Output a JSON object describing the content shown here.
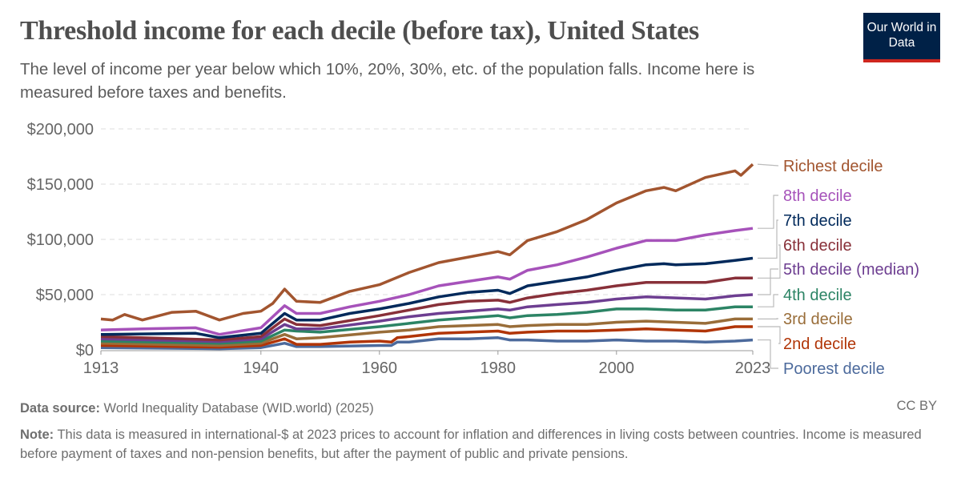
{
  "title": "Threshold income for each decile (before tax), United States",
  "subtitle": "The level of income per year below which 10%, 20%, 30%, etc. of the population falls. Income here is measured before taxes and benefits.",
  "logo": "Our World in Data",
  "footer": {
    "source_label": "Data source:",
    "source": "World Inequality Database (WID.world) (2025)",
    "license": "CC BY",
    "note_label": "Note:",
    "note": "This data is measured in international-$ at 2023 prices to account for inflation and differences in living costs between countries. Income is measured before payment of taxes and non-pension benefits, but after the payment of public and private pensions."
  },
  "chart_data": {
    "type": "line",
    "title": "Threshold income for each decile (before tax), United States",
    "xlim": [
      1913,
      2023
    ],
    "ylim": [
      0,
      200000
    ],
    "x_ticks": [
      "1913",
      "1940",
      "1960",
      "1980",
      "2000",
      "2023"
    ],
    "y_ticks": [
      "$0",
      "$50,000",
      "$100,000",
      "$150,000",
      "$200,000"
    ],
    "grid": "horizontal dashed",
    "legend": "right, labels at line ends",
    "series": [
      {
        "name": "Richest decile",
        "color": "#a2552f",
        "x": [
          1913,
          1915,
          1917,
          1920,
          1925,
          1929,
          1933,
          1937,
          1940,
          1942,
          1944,
          1946,
          1950,
          1955,
          1960,
          1965,
          1970,
          1975,
          1980,
          1982,
          1985,
          1990,
          1995,
          2000,
          2005,
          2008,
          2010,
          2015,
          2020,
          2021,
          2023
        ],
        "y": [
          28000,
          27000,
          32000,
          27000,
          34000,
          35000,
          27000,
          33000,
          35000,
          42000,
          55000,
          44000,
          43000,
          53000,
          59000,
          70000,
          79000,
          84000,
          89000,
          86000,
          99000,
          107000,
          118000,
          133000,
          144000,
          147000,
          144000,
          156000,
          162000,
          158000,
          168000
        ]
      },
      {
        "name": "8th decile",
        "color": "#a652ba",
        "x": [
          1913,
          1920,
          1929,
          1933,
          1940,
          1944,
          1946,
          1950,
          1955,
          1960,
          1965,
          1970,
          1975,
          1980,
          1982,
          1985,
          1990,
          1995,
          2000,
          2005,
          2010,
          2015,
          2020,
          2023
        ],
        "y": [
          18000,
          19000,
          20000,
          14000,
          20000,
          40000,
          33000,
          33000,
          39000,
          44000,
          50000,
          58000,
          62000,
          66000,
          64000,
          72000,
          77000,
          84000,
          92000,
          99000,
          99000,
          104000,
          108000,
          110000
        ]
      },
      {
        "name": "7th decile",
        "color": "#00295b",
        "x": [
          1913,
          1929,
          1933,
          1940,
          1944,
          1946,
          1950,
          1955,
          1960,
          1965,
          1970,
          1975,
          1980,
          1982,
          1985,
          1990,
          1995,
          2000,
          2005,
          2008,
          2010,
          2015,
          2020,
          2023
        ],
        "y": [
          14000,
          15000,
          11000,
          15000,
          33000,
          27000,
          27000,
          33000,
          37000,
          42000,
          48000,
          52000,
          54000,
          51000,
          58000,
          62000,
          66000,
          72000,
          77000,
          78000,
          77000,
          78000,
          81000,
          83000
        ]
      },
      {
        "name": "6th decile",
        "color": "#883039",
        "x": [
          1913,
          1933,
          1940,
          1944,
          1946,
          1950,
          1960,
          1965,
          1970,
          1975,
          1980,
          1982,
          1985,
          1990,
          1995,
          2000,
          2005,
          2010,
          2015,
          2020,
          2023
        ],
        "y": [
          12000,
          9000,
          12000,
          28000,
          23000,
          22000,
          31000,
          36000,
          41000,
          44000,
          45000,
          43000,
          47000,
          51000,
          54000,
          58000,
          61000,
          61000,
          61000,
          65000,
          65000
        ]
      },
      {
        "name": "5th decile (median)",
        "color": "#6d3e91",
        "x": [
          1913,
          1933,
          1940,
          1944,
          1946,
          1950,
          1960,
          1965,
          1970,
          1975,
          1980,
          1982,
          1985,
          1990,
          1995,
          2000,
          2005,
          2010,
          2015,
          2020,
          2023
        ],
        "y": [
          10000,
          7500,
          10000,
          23000,
          19000,
          19000,
          26000,
          30000,
          33000,
          35000,
          37000,
          36000,
          39000,
          41000,
          43000,
          46000,
          48000,
          47000,
          46000,
          49000,
          50000
        ]
      },
      {
        "name": "4th decile",
        "color": "#2c8465",
        "x": [
          1913,
          1933,
          1940,
          1944,
          1946,
          1950,
          1960,
          1965,
          1970,
          1975,
          1980,
          1982,
          1985,
          1990,
          1995,
          2000,
          2005,
          2010,
          2015,
          2020,
          2023
        ],
        "y": [
          8000,
          6000,
          8000,
          18000,
          17000,
          16000,
          21000,
          24000,
          27000,
          29000,
          31000,
          29000,
          31000,
          32000,
          34000,
          37000,
          37000,
          36000,
          36000,
          39000,
          39000
        ]
      },
      {
        "name": "3rd decile",
        "color": "#996d39",
        "x": [
          1913,
          1933,
          1940,
          1944,
          1946,
          1950,
          1960,
          1965,
          1970,
          1975,
          1980,
          1982,
          1985,
          1990,
          1995,
          2000,
          2005,
          2010,
          2015,
          2020,
          2023
        ],
        "y": [
          6000,
          4000,
          6000,
          14000,
          10000,
          11000,
          16000,
          18000,
          21000,
          22000,
          23000,
          21000,
          22000,
          23000,
          23000,
          25000,
          26000,
          25000,
          24000,
          28000,
          28000
        ]
      },
      {
        "name": "2nd decile",
        "color": "#b13507",
        "x": [
          1913,
          1933,
          1940,
          1944,
          1946,
          1950,
          1955,
          1960,
          1962,
          1963,
          1965,
          1970,
          1975,
          1980,
          1982,
          1985,
          1990,
          1995,
          2000,
          2005,
          2010,
          2015,
          2020,
          2023
        ],
        "y": [
          4000,
          2500,
          4000,
          10000,
          5000,
          5000,
          7000,
          8000,
          7000,
          11000,
          12000,
          15000,
          16000,
          17000,
          15000,
          16000,
          17000,
          17000,
          18000,
          19000,
          18000,
          17000,
          21000,
          21000
        ]
      },
      {
        "name": "Poorest decile",
        "color": "#4c6a9c",
        "x": [
          1913,
          1933,
          1940,
          1944,
          1946,
          1950,
          1960,
          1962,
          1963,
          1965,
          1970,
          1975,
          1980,
          1982,
          1985,
          1990,
          1995,
          2000,
          2005,
          2010,
          2015,
          2020,
          2023
        ],
        "y": [
          2000,
          1000,
          2000,
          6000,
          3000,
          3000,
          4000,
          4000,
          7000,
          7000,
          10000,
          10000,
          11000,
          9000,
          9000,
          8000,
          8000,
          9000,
          8000,
          8000,
          7000,
          8000,
          9000
        ]
      }
    ]
  }
}
